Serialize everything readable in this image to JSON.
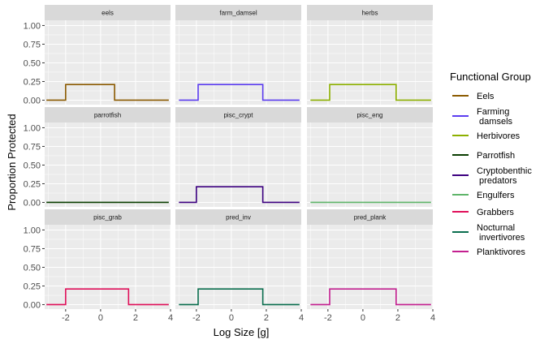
{
  "chart_data": {
    "type": "line",
    "xlabel": "Log Size [g]",
    "ylabel": "Proportion Protected",
    "xlim": [
      -3.2,
      4.0
    ],
    "ylim": [
      -0.06,
      1.07
    ],
    "x_ticks": [
      -2,
      0,
      2,
      4
    ],
    "x_tick_labels": [
      "-2",
      "0",
      "2",
      "4"
    ],
    "y_ticks": [
      0,
      0.25,
      0.5,
      0.75,
      1.0
    ],
    "y_tick_labels": [
      "0.00",
      "0.25",
      "0.50",
      "0.75",
      "1.00"
    ],
    "grid": true,
    "legend": {
      "title": "Functional Group",
      "position": "right",
      "entries": [
        {
          "label_lines": [
            "Eels"
          ],
          "color": "#8B5A00"
        },
        {
          "label_lines": [
            "Farming",
            "damsels"
          ],
          "color": "#5B3CF0"
        },
        {
          "label_lines": [
            "Herbivores"
          ],
          "color": "#8DB000"
        },
        {
          "label_lines": [
            "Parrotfish"
          ],
          "color": "#0A3D00"
        },
        {
          "label_lines": [
            "Cryptobenthic",
            "predators"
          ],
          "color": "#3C0080"
        },
        {
          "label_lines": [
            "Engulfers"
          ],
          "color": "#5FB56A"
        },
        {
          "label_lines": [
            "Grabbers"
          ],
          "color": "#E0105A"
        },
        {
          "label_lines": [
            "Nocturnal",
            "invertivores"
          ],
          "color": "#0A6E4E"
        },
        {
          "label_lines": [
            "Planktivores"
          ],
          "color": "#C42090"
        }
      ]
    },
    "facets": [
      {
        "name": "eels",
        "color": "#8B5A00",
        "x": [
          -3.1,
          -2.0,
          -2.0,
          0.8,
          0.8,
          3.9
        ],
        "y": [
          0,
          0,
          0.21,
          0.21,
          0,
          0
        ]
      },
      {
        "name": "farm_damsel",
        "color": "#5B3CF0",
        "x": [
          -3.0,
          -1.9,
          -1.9,
          1.8,
          1.8,
          3.9
        ],
        "y": [
          0,
          0,
          0.21,
          0.21,
          0,
          0
        ]
      },
      {
        "name": "herbs",
        "color": "#8DB000",
        "x": [
          -3.0,
          -1.9,
          -1.9,
          1.9,
          1.9,
          3.9
        ],
        "y": [
          0,
          0,
          0.21,
          0.21,
          0,
          0
        ]
      },
      {
        "name": "parrotfish",
        "color": "#0A3D00",
        "x": [
          -3.1,
          3.9
        ],
        "y": [
          0,
          0
        ]
      },
      {
        "name": "pisc_crypt",
        "color": "#3C0080",
        "x": [
          -3.0,
          -2.0,
          -2.0,
          1.8,
          1.8,
          3.9
        ],
        "y": [
          0,
          0,
          0.21,
          0.21,
          0,
          0
        ]
      },
      {
        "name": "pisc_eng",
        "color": "#5FB56A",
        "x": [
          -3.0,
          3.9
        ],
        "y": [
          0,
          0
        ]
      },
      {
        "name": "pisc_grab",
        "color": "#E0105A",
        "x": [
          -3.1,
          -2.0,
          -2.0,
          1.6,
          1.6,
          3.9
        ],
        "y": [
          0,
          0,
          0.21,
          0.21,
          0,
          0
        ]
      },
      {
        "name": "pred_inv",
        "color": "#0A6E4E",
        "x": [
          -3.0,
          -1.9,
          -1.9,
          1.8,
          1.8,
          3.9
        ],
        "y": [
          0,
          0,
          0.21,
          0.21,
          0,
          0
        ]
      },
      {
        "name": "pred_plank",
        "color": "#C42090",
        "x": [
          -3.0,
          -1.9,
          -1.9,
          1.9,
          1.9,
          3.9
        ],
        "y": [
          0,
          0,
          0.21,
          0.21,
          0,
          0
        ]
      }
    ]
  }
}
